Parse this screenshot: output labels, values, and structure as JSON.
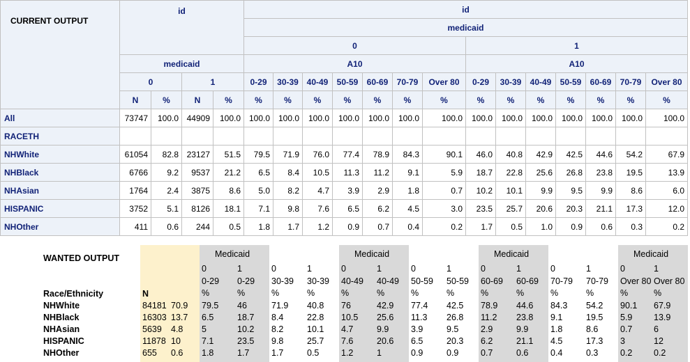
{
  "current": {
    "title": "CURRENT OUTPUT",
    "id_label": "id",
    "medicaid_label": "medicaid",
    "a10_label": "A10",
    "m0": "0",
    "m1": "1",
    "N": "N",
    "pct": "%",
    "age_groups": [
      "0-29",
      "30-39",
      "40-49",
      "50-59",
      "60-69",
      "70-79",
      "Over 80"
    ],
    "rows": [
      {
        "label": "All",
        "values": [
          "73747",
          "100.0",
          "44909",
          "100.0",
          "100.0",
          "100.0",
          "100.0",
          "100.0",
          "100.0",
          "100.0",
          "100.0",
          "100.0",
          "100.0",
          "100.0",
          "100.0",
          "100.0",
          "100.0",
          "100.0"
        ]
      },
      {
        "label": "RACETH",
        "values": [
          "",
          "",
          "",
          "",
          "",
          "",
          "",
          "",
          "",
          "",
          "",
          "",
          "",
          "",
          "",
          "",
          "",
          ""
        ]
      },
      {
        "label": "NHWhite",
        "values": [
          "61054",
          "82.8",
          "23127",
          "51.5",
          "79.5",
          "71.9",
          "76.0",
          "77.4",
          "78.9",
          "84.3",
          "90.1",
          "46.0",
          "40.8",
          "42.9",
          "42.5",
          "44.6",
          "54.2",
          "67.9"
        ]
      },
      {
        "label": "NHBlack",
        "values": [
          "6766",
          "9.2",
          "9537",
          "21.2",
          "6.5",
          "8.4",
          "10.5",
          "11.3",
          "11.2",
          "9.1",
          "5.9",
          "18.7",
          "22.8",
          "25.6",
          "26.8",
          "23.8",
          "19.5",
          "13.9"
        ]
      },
      {
        "label": "NHAsian",
        "values": [
          "1764",
          "2.4",
          "3875",
          "8.6",
          "5.0",
          "8.2",
          "4.7",
          "3.9",
          "2.9",
          "1.8",
          "0.7",
          "10.2",
          "10.1",
          "9.9",
          "9.5",
          "9.9",
          "8.6",
          "6.0"
        ]
      },
      {
        "label": "HISPANIC",
        "values": [
          "3752",
          "5.1",
          "8126",
          "18.1",
          "7.1",
          "9.8",
          "7.6",
          "6.5",
          "6.2",
          "4.5",
          "3.0",
          "23.5",
          "25.7",
          "20.6",
          "20.3",
          "21.1",
          "17.3",
          "12.0"
        ]
      },
      {
        "label": "NHOther",
        "values": [
          "411",
          "0.6",
          "244",
          "0.5",
          "1.8",
          "1.7",
          "1.2",
          "0.9",
          "0.7",
          "0.4",
          "0.2",
          "1.7",
          "0.5",
          "1.0",
          "0.9",
          "0.6",
          "0.3",
          "0.2"
        ]
      }
    ]
  },
  "wanted": {
    "title": "WANTED OUTPUT",
    "medicaid_label": "Medicaid",
    "race_label": "Race/Ethnicity",
    "N": "N",
    "pct": "%",
    "codes": [
      "0",
      "1"
    ],
    "age_groups": [
      "0-29",
      "30-39",
      "40-49",
      "50-59",
      "60-69",
      "70-79",
      "Over 80"
    ],
    "rows": [
      {
        "label": "NHWhite",
        "n": "84181",
        "p": "70.9",
        "values": [
          "79.5",
          "46",
          "71.9",
          "40.8",
          "76",
          "42.9",
          "77.4",
          "42.5",
          "78.9",
          "44.6",
          "84.3",
          "54.2",
          "90.1",
          "67.9"
        ]
      },
      {
        "label": "NHBlack",
        "n": "16303",
        "p": "13.7",
        "values": [
          "6.5",
          "18.7",
          "8.4",
          "22.8",
          "10.5",
          "25.6",
          "11.3",
          "26.8",
          "11.2",
          "23.8",
          "9.1",
          "19.5",
          "5.9",
          "13.9"
        ]
      },
      {
        "label": "NHAsian",
        "n": "5639",
        "p": "4.8",
        "values": [
          "5",
          "10.2",
          "8.2",
          "10.1",
          "4.7",
          "9.9",
          "3.9",
          "9.5",
          "2.9",
          "9.9",
          "1.8",
          "8.6",
          "0.7",
          "6"
        ]
      },
      {
        "label": "HISPANIC",
        "n": "11878",
        "p": "10",
        "values": [
          "7.1",
          "23.5",
          "9.8",
          "25.7",
          "7.6",
          "20.6",
          "6.5",
          "20.3",
          "6.2",
          "21.1",
          "4.5",
          "17.3",
          "3",
          "12"
        ]
      },
      {
        "label": "NHOther",
        "n": "655",
        "p": "0.6",
        "values": [
          "1.8",
          "1.7",
          "1.7",
          "0.5",
          "1.2",
          "1",
          "0.9",
          "0.9",
          "0.7",
          "0.6",
          "0.4",
          "0.3",
          "0.2",
          "0.2"
        ]
      }
    ]
  }
}
